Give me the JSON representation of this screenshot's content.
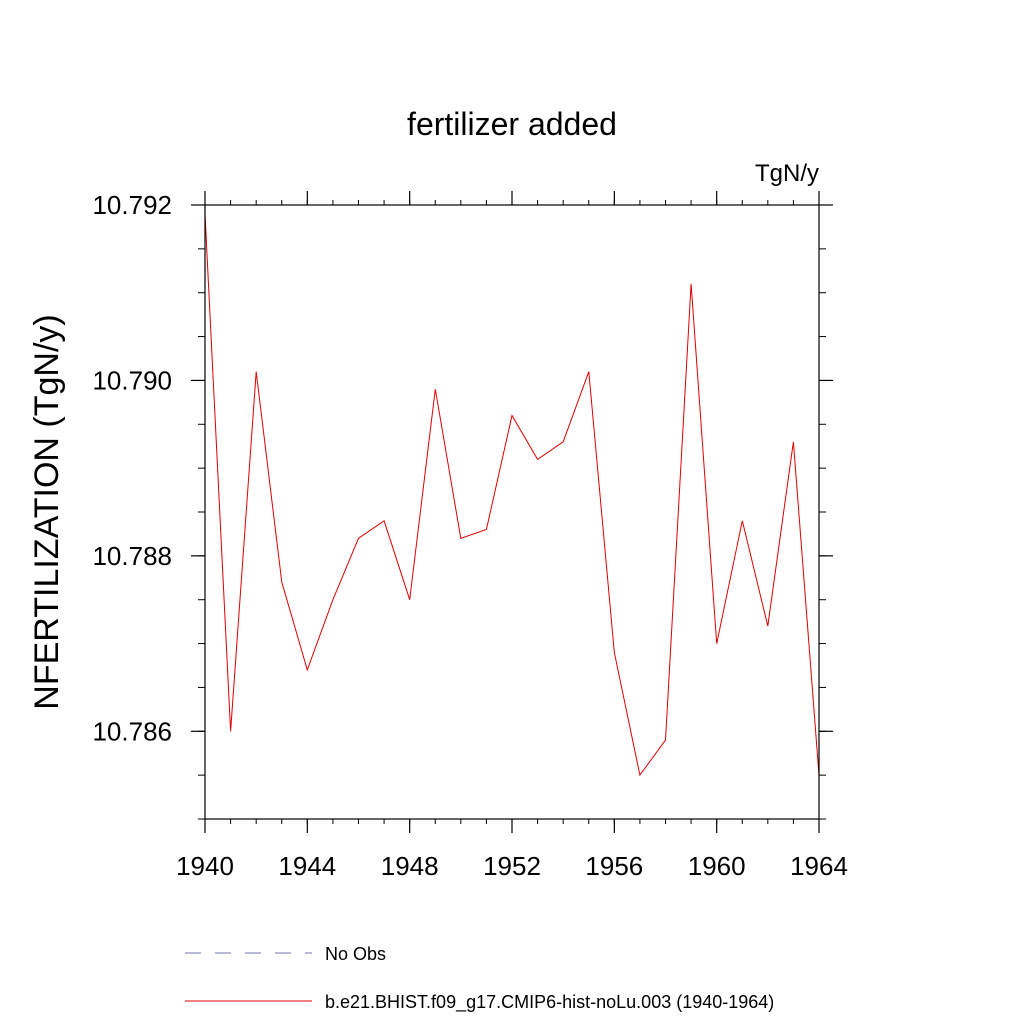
{
  "chart_data": {
    "type": "line",
    "title": "fertilizer added",
    "units_label": "TgN/y",
    "ylabel": "NFERTILIZATION  (TgN/y)",
    "xlabel": "",
    "xlim": [
      1940,
      1964
    ],
    "ylim": [
      10.785,
      10.792
    ],
    "x_major_ticks": [
      1940,
      1944,
      1948,
      1952,
      1956,
      1960,
      1964
    ],
    "x_tick_labels": [
      "1940",
      "1944",
      "1948",
      "1952",
      "1956",
      "1960",
      "1964"
    ],
    "y_major_ticks": [
      10.786,
      10.788,
      10.79,
      10.792
    ],
    "y_tick_labels": [
      "10.786",
      "10.788",
      "10.790",
      "10.792"
    ],
    "y_minor_step": 0.0005,
    "x_minor_step": 1,
    "grid": false,
    "legend_placement": "bottom",
    "legend": [
      {
        "label": "No Obs",
        "color": "#7070b0",
        "dash": true
      },
      {
        "label": "b.e21.BHIST.f09_g17.CMIP6-hist-noLu.003 (1940-1964)",
        "color": "#e00000",
        "dash": false
      }
    ],
    "series": [
      {
        "name": "b.e21.BHIST.f09_g17.CMIP6-hist-noLu.003 (1940-1964)",
        "color": "#e00000",
        "x": [
          1940,
          1941,
          1942,
          1943,
          1944,
          1945,
          1946,
          1947,
          1948,
          1949,
          1950,
          1951,
          1952,
          1953,
          1954,
          1955,
          1956,
          1957,
          1958,
          1959,
          1960,
          1961,
          1962,
          1963,
          1964
        ],
        "values": [
          10.7919,
          10.786,
          10.7901,
          10.7877,
          10.7867,
          10.7875,
          10.7882,
          10.7884,
          10.7875,
          10.7899,
          10.7882,
          10.7883,
          10.7896,
          10.7891,
          10.7893,
          10.7901,
          10.7869,
          10.7855,
          10.7859,
          10.7911,
          10.787,
          10.7884,
          10.7872,
          10.7893,
          10.7855
        ]
      }
    ]
  }
}
